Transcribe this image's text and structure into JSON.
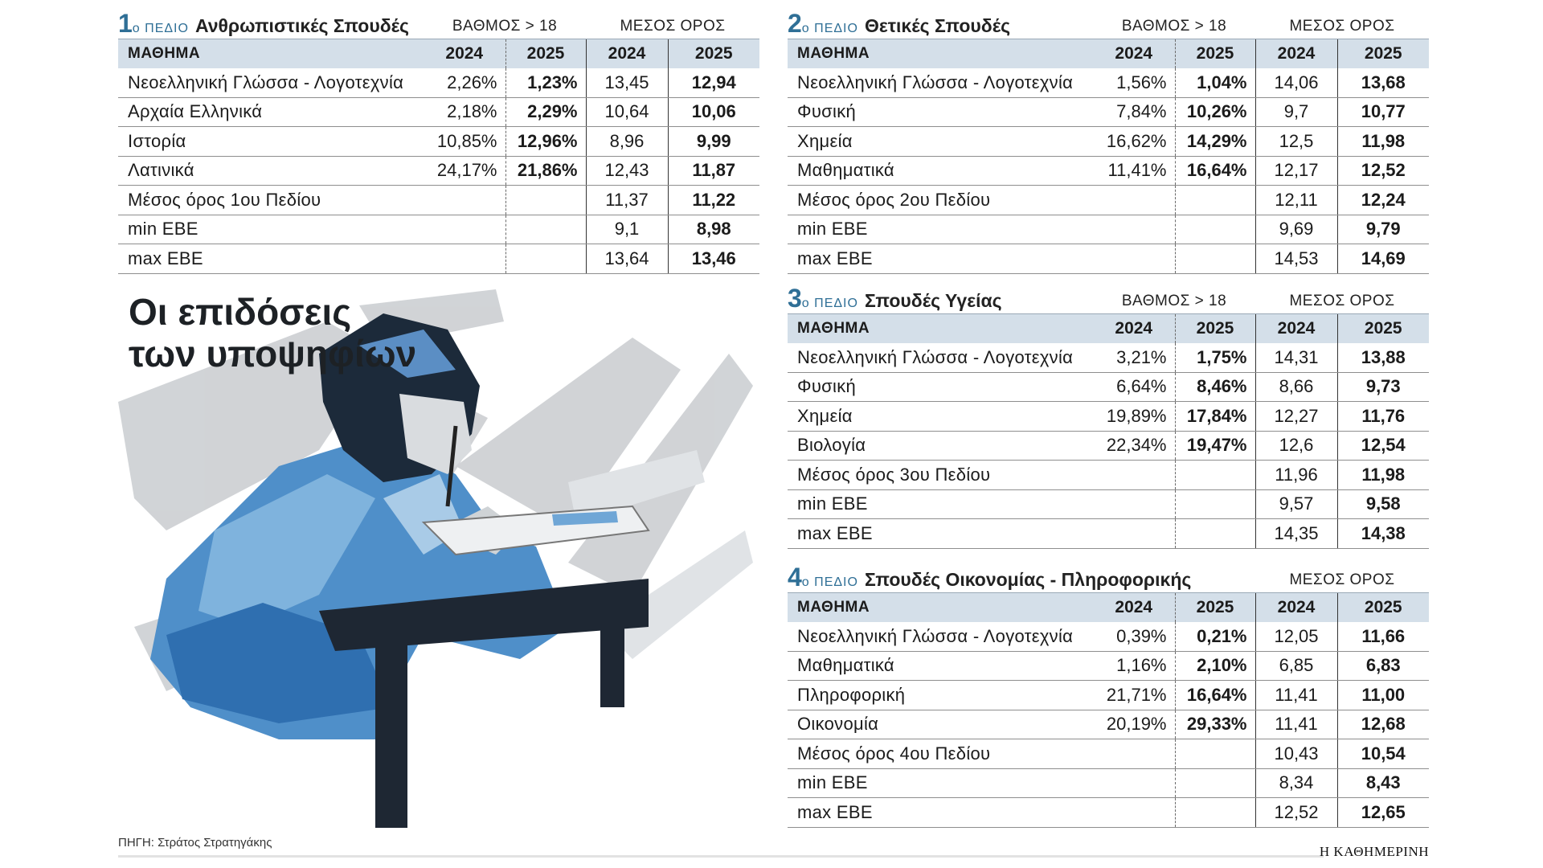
{
  "header": {
    "title_lines": [
      "Οι επιδόσεις",
      "των υποψηφίων"
    ]
  },
  "fields": [
    {
      "number": "1",
      "label": "ο ΠΕΔΙΟ",
      "name": "Ανθρωπιστικές Σπουδές",
      "groups": {
        "grade": "ΒΑΘΜΟΣ > 18",
        "average": "ΜΕΣΟΣ ΟΡΟΣ"
      },
      "columns": [
        "ΜΑΘΗΜΑ",
        "2024",
        "2025",
        "2024",
        "2025"
      ],
      "rows": [
        [
          "Νεοελληνική Γλώσσα - Λογοτεχνία",
          "2,26%",
          "1,23%",
          "13,45",
          "12,94"
        ],
        [
          "Αρχαία Ελληνικά",
          "2,18%",
          "2,29%",
          "10,64",
          "10,06"
        ],
        [
          "Ιστορία",
          "10,85%",
          "12,96%",
          "8,96",
          "9,99"
        ],
        [
          "Λατινικά",
          "24,17%",
          "21,86%",
          "12,43",
          "11,87"
        ],
        [
          "Μέσος όρος 1ου Πεδίου",
          null,
          null,
          "11,37",
          "11,22"
        ],
        [
          "min ΕΒΕ",
          null,
          null,
          "9,1",
          "8,98"
        ],
        [
          "max ΕΒΕ",
          null,
          null,
          "13,64",
          "13,46"
        ]
      ]
    },
    {
      "number": "2",
      "label": "ο ΠΕΔΙΟ",
      "name": "Θετικές Σπουδές",
      "groups": {
        "grade": "ΒΑΘΜΟΣ > 18",
        "average": "ΜΕΣΟΣ ΟΡΟΣ"
      },
      "columns": [
        "ΜΑΘΗΜΑ",
        "2024",
        "2025",
        "2024",
        "2025"
      ],
      "rows": [
        [
          "Νεοελληνική Γλώσσα - Λογοτεχνία",
          "1,56%",
          "1,04%",
          "14,06",
          "13,68"
        ],
        [
          "Φυσική",
          "7,84%",
          "10,26%",
          "9,7",
          "10,77"
        ],
        [
          "Χημεία",
          "16,62%",
          "14,29%",
          "12,5",
          "11,98"
        ],
        [
          "Μαθηματικά",
          "11,41%",
          "16,64%",
          "12,17",
          "12,52"
        ],
        [
          "Μέσος όρος 2ου Πεδίου",
          null,
          null,
          "12,11",
          "12,24"
        ],
        [
          "min ΕΒΕ",
          null,
          null,
          "9,69",
          "9,79"
        ],
        [
          "max ΕΒΕ",
          null,
          null,
          "14,53",
          "14,69"
        ]
      ]
    },
    {
      "number": "3",
      "label": "ο ΠΕΔΙΟ",
      "name": "Σπουδές Υγείας",
      "groups": {
        "grade": "ΒΑΘΜΟΣ > 18",
        "average": "ΜΕΣΟΣ ΟΡΟΣ"
      },
      "columns": [
        "ΜΑΘΗΜΑ",
        "2024",
        "2025",
        "2024",
        "2025"
      ],
      "rows": [
        [
          "Νεοελληνική Γλώσσα - Λογοτεχνία",
          "3,21%",
          "1,75%",
          "14,31",
          "13,88"
        ],
        [
          "Φυσική",
          "6,64%",
          "8,46%",
          "8,66",
          "9,73"
        ],
        [
          "Χημεία",
          "19,89%",
          "17,84%",
          "12,27",
          "11,76"
        ],
        [
          "Βιολογία",
          "22,34%",
          "19,47%",
          "12,6",
          "12,54"
        ],
        [
          "Μέσος όρος 3ου Πεδίου",
          null,
          null,
          "11,96",
          "11,98"
        ],
        [
          "min ΕΒΕ",
          null,
          null,
          "9,57",
          "9,58"
        ],
        [
          "max ΕΒΕ",
          null,
          null,
          "14,35",
          "14,38"
        ]
      ]
    },
    {
      "number": "4",
      "label": "ο ΠΕΔΙΟ",
      "name": "Σπουδές Οικονομίας - Πληροφορικής",
      "groups": {
        "average": "ΜΕΣΟΣ ΟΡΟΣ"
      },
      "columns": [
        "ΜΑΘΗΜΑ",
        "2024",
        "2025",
        "2024",
        "2025"
      ],
      "rows": [
        [
          "Νεοελληνική Γλώσσα - Λογοτεχνία",
          "0,39%",
          "0,21%",
          "12,05",
          "11,66"
        ],
        [
          "Μαθηματικά",
          "1,16%",
          "2,10%",
          "6,85",
          "6,83"
        ],
        [
          "Πληροφορική",
          "21,71%",
          "16,64%",
          "11,41",
          "11,00"
        ],
        [
          "Οικονομία",
          "20,19%",
          "29,33%",
          "11,41",
          "12,68"
        ],
        [
          "Μέσος όρος 4ου Πεδίου",
          null,
          null,
          "10,43",
          "10,54"
        ],
        [
          "min ΕΒΕ",
          null,
          null,
          "8,34",
          "8,43"
        ],
        [
          "max ΕΒΕ",
          null,
          null,
          "12,52",
          "12,65"
        ]
      ]
    }
  ],
  "footer": {
    "source": "ΠΗΓΗ: Στράτος Στρατηγάκης",
    "brand": "Η ΚΑΘΗΜΕΡΙΝΗ"
  }
}
